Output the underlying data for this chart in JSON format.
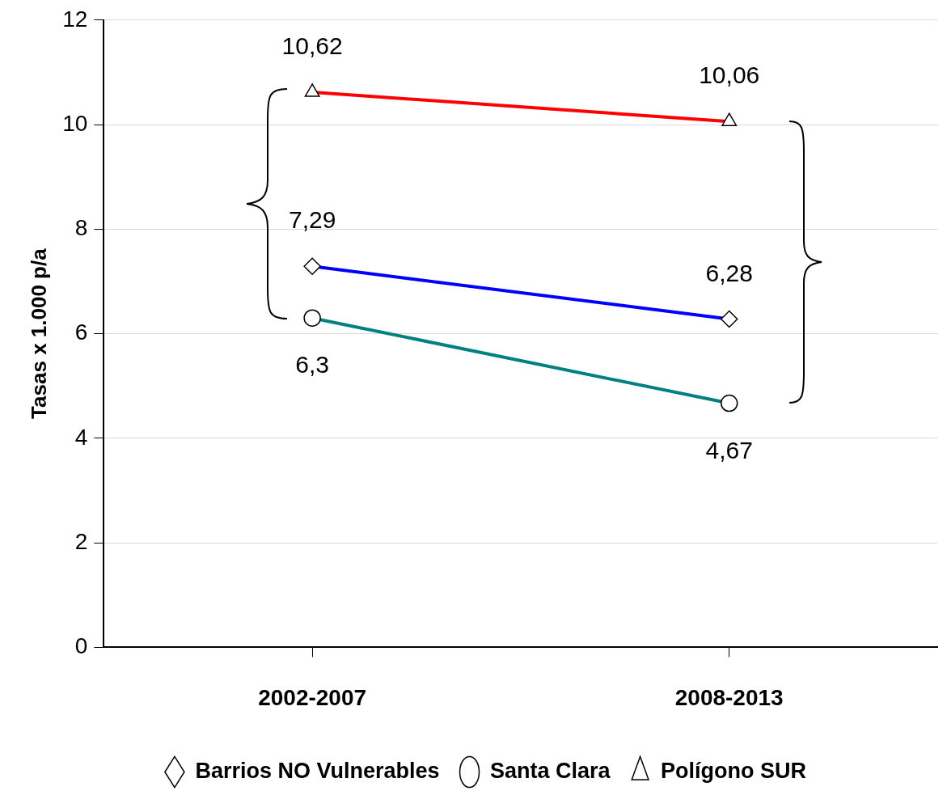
{
  "chart_data": {
    "type": "line",
    "ylabel": "Tasas x 1.000 p/a",
    "categories": [
      "2002-2007",
      "2008-2013"
    ],
    "ylim": [
      0,
      12
    ],
    "yticks": [
      0,
      2,
      4,
      6,
      8,
      10,
      12
    ],
    "grid": "y",
    "legend": "bottom",
    "line_style": "solid",
    "series": [
      {
        "name": "Barrios NO Vulnerables",
        "color": "#0000ff",
        "marker": "diamond",
        "values": [
          7.29,
          6.28
        ],
        "value_labels": [
          "7,29",
          "6,28"
        ]
      },
      {
        "name": "Santa Clara",
        "color": "#008080",
        "marker": "circle",
        "values": [
          6.3,
          4.67
        ],
        "value_labels": [
          "6,3",
          "4,67"
        ]
      },
      {
        "name": "Polígono SUR",
        "color": "#ff0000",
        "marker": "triangle",
        "values": [
          10.62,
          10.06
        ],
        "value_labels": [
          "10,62",
          "10,06"
        ]
      }
    ]
  }
}
